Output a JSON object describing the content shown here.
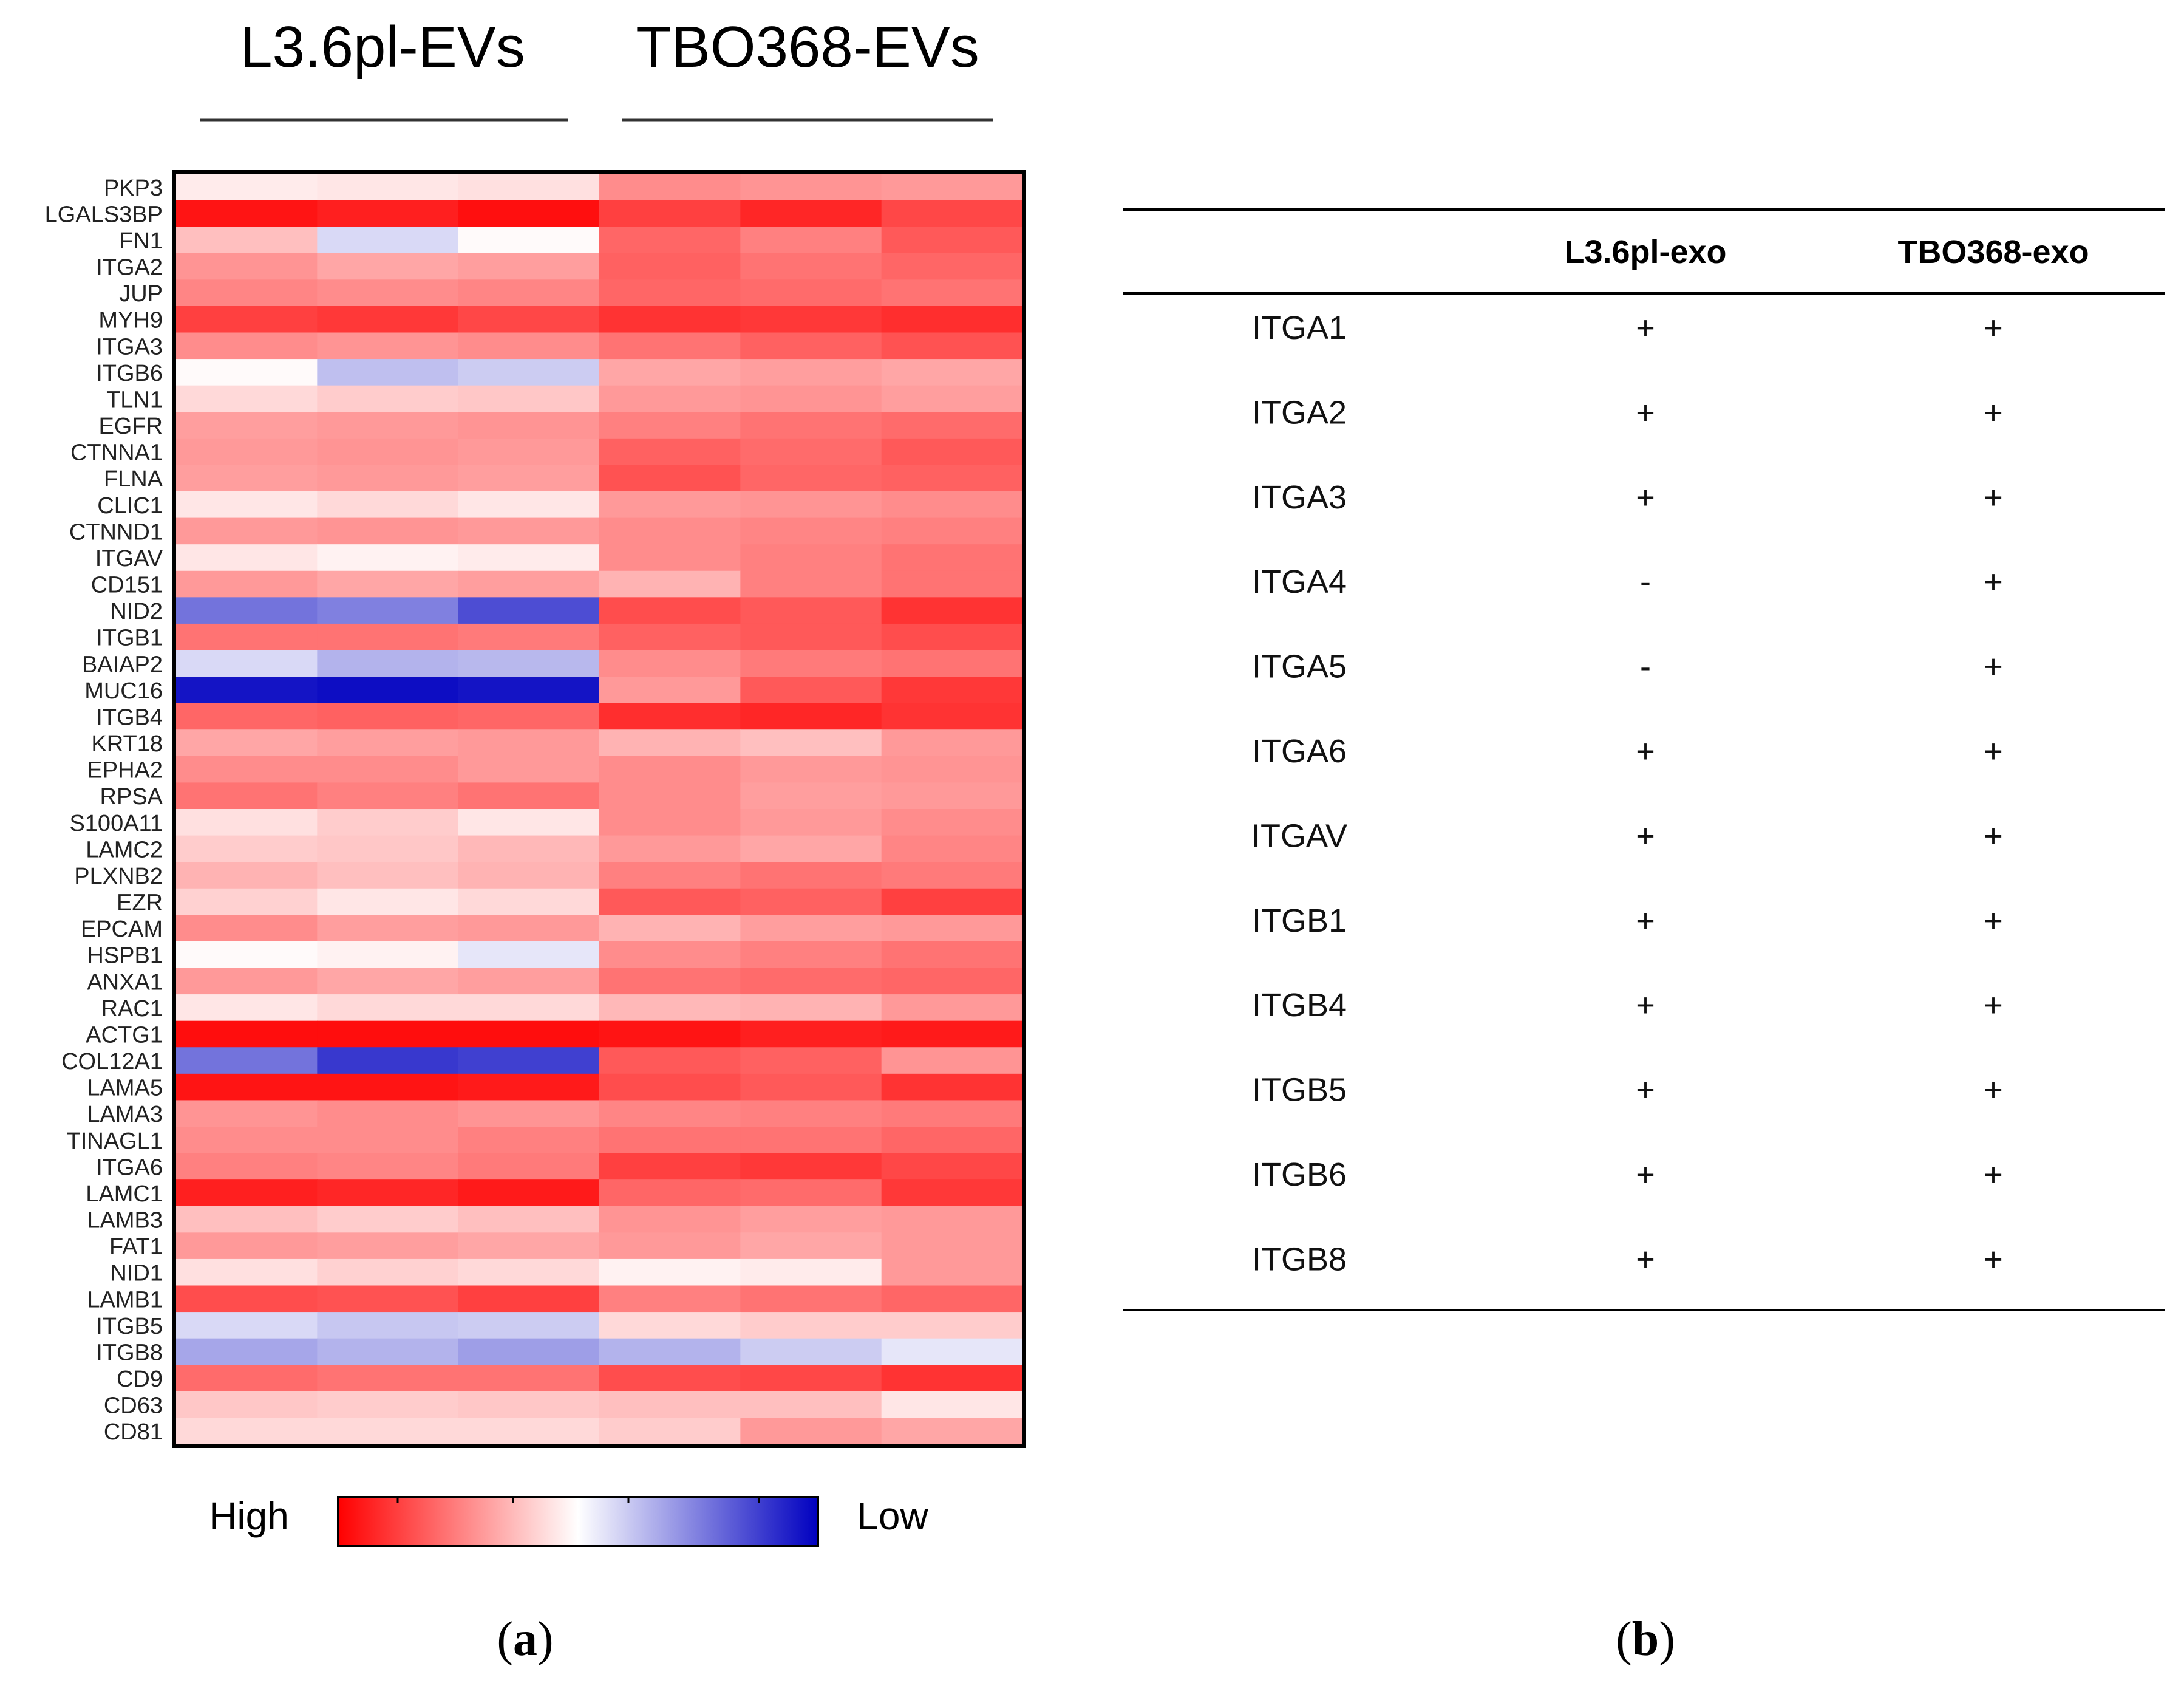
{
  "panel_a": {
    "group_labels": [
      "L3.6pl-EVs",
      "TBO368-EVs"
    ],
    "caption": "a"
  },
  "panel_b": {
    "caption": "b",
    "headers": [
      "",
      "L3.6pl-exo",
      "TBO368-exo"
    ],
    "rows": [
      [
        "ITGA1",
        "+",
        "+"
      ],
      [
        "ITGA2",
        "+",
        "+"
      ],
      [
        "ITGA3",
        "+",
        "+"
      ],
      [
        "ITGA4",
        "-",
        "+"
      ],
      [
        "ITGA5",
        "-",
        "+"
      ],
      [
        "ITGA6",
        "+",
        "+"
      ],
      [
        "ITGAV",
        "+",
        "+"
      ],
      [
        "ITGB1",
        "+",
        "+"
      ],
      [
        "ITGB4",
        "+",
        "+"
      ],
      [
        "ITGB5",
        "+",
        "+"
      ],
      [
        "ITGB6",
        "+",
        "+"
      ],
      [
        "ITGB8",
        "+",
        "+"
      ]
    ]
  },
  "colors": {
    "high": "#ff0000",
    "mid": "#ffffff",
    "low": "#0000c0",
    "line": "#000000"
  },
  "chart_data": {
    "type": "heatmap",
    "title": "",
    "xlabel": "",
    "ylabel": "",
    "legend_high": "High",
    "legend_low": "Low",
    "scale": "relative expression: +1 = High (red), 0 = neutral (white), -1 = Low (blue)",
    "columns": [
      "L3.6pl-EVs 1",
      "L3.6pl-EVs 2",
      "L3.6pl-EVs 3",
      "TBO368-EVs 1",
      "TBO368-EVs 2",
      "TBO368-EVs 3"
    ],
    "rows": [
      "PKP3",
      "LGALS3BP",
      "FN1",
      "ITGA2",
      "JUP",
      "MYH9",
      "ITGA3",
      "ITGB6",
      "TLN1",
      "EGFR",
      "CTNNA1",
      "FLNA",
      "CLIC1",
      "CTNND1",
      "ITGAV",
      "CD151",
      "NID2",
      "ITGB1",
      "BAIAP2",
      "MUC16",
      "ITGB4",
      "KRT18",
      "EPHA2",
      "RPSA",
      "S100A11",
      "LAMC2",
      "PLXNB2",
      "EZR",
      "EPCAM",
      "HSPB1",
      "ANXA1",
      "RAC1",
      "ACTG1",
      "COL12A1",
      "LAMA5",
      "LAMA3",
      "TINAGL1",
      "ITGA6",
      "LAMC1",
      "LAMB3",
      "FAT1",
      "NID1",
      "LAMB1",
      "ITGB5",
      "ITGB8",
      "CD9",
      "CD63",
      "CD81"
    ],
    "values": [
      [
        0.08,
        0.1,
        0.12,
        0.45,
        0.42,
        0.4
      ],
      [
        0.92,
        0.88,
        0.94,
        0.75,
        0.85,
        0.72
      ],
      [
        0.25,
        -0.15,
        0.02,
        0.6,
        0.5,
        0.65
      ],
      [
        0.42,
        0.35,
        0.38,
        0.62,
        0.55,
        0.6
      ],
      [
        0.48,
        0.45,
        0.48,
        0.6,
        0.58,
        0.55
      ],
      [
        0.75,
        0.78,
        0.72,
        0.8,
        0.78,
        0.82
      ],
      [
        0.45,
        0.42,
        0.45,
        0.55,
        0.62,
        0.68
      ],
      [
        0.02,
        -0.25,
        -0.2,
        0.35,
        0.38,
        0.35
      ],
      [
        0.15,
        0.2,
        0.22,
        0.4,
        0.42,
        0.38
      ],
      [
        0.38,
        0.4,
        0.42,
        0.5,
        0.55,
        0.58
      ],
      [
        0.4,
        0.42,
        0.4,
        0.62,
        0.58,
        0.65
      ],
      [
        0.38,
        0.4,
        0.38,
        0.68,
        0.6,
        0.62
      ],
      [
        0.1,
        0.15,
        0.1,
        0.4,
        0.42,
        0.45
      ],
      [
        0.4,
        0.42,
        0.4,
        0.45,
        0.48,
        0.5
      ],
      [
        0.1,
        0.05,
        0.08,
        0.45,
        0.5,
        0.55
      ],
      [
        0.4,
        0.35,
        0.38,
        0.3,
        0.5,
        0.55
      ],
      [
        -0.55,
        -0.5,
        -0.7,
        0.7,
        0.65,
        0.8
      ],
      [
        0.55,
        0.55,
        0.52,
        0.62,
        0.65,
        0.7
      ],
      [
        -0.15,
        -0.3,
        -0.28,
        0.45,
        0.52,
        0.55
      ],
      [
        -0.92,
        -0.95,
        -0.92,
        0.4,
        0.65,
        0.78
      ],
      [
        0.6,
        0.62,
        0.6,
        0.82,
        0.85,
        0.8
      ],
      [
        0.35,
        0.38,
        0.4,
        0.3,
        0.25,
        0.4
      ],
      [
        0.45,
        0.45,
        0.4,
        0.45,
        0.4,
        0.42
      ],
      [
        0.55,
        0.5,
        0.55,
        0.45,
        0.38,
        0.4
      ],
      [
        0.12,
        0.2,
        0.1,
        0.45,
        0.4,
        0.45
      ],
      [
        0.2,
        0.22,
        0.28,
        0.4,
        0.35,
        0.48
      ],
      [
        0.3,
        0.25,
        0.3,
        0.5,
        0.55,
        0.52
      ],
      [
        0.18,
        0.1,
        0.15,
        0.65,
        0.62,
        0.75
      ],
      [
        0.45,
        0.38,
        0.4,
        0.3,
        0.38,
        0.4
      ],
      [
        0.02,
        0.05,
        -0.1,
        0.45,
        0.5,
        0.55
      ],
      [
        0.4,
        0.35,
        0.38,
        0.55,
        0.58,
        0.6
      ],
      [
        0.1,
        0.15,
        0.15,
        0.28,
        0.3,
        0.4
      ],
      [
        0.95,
        0.95,
        0.95,
        0.92,
        0.88,
        0.9
      ],
      [
        -0.55,
        -0.78,
        -0.75,
        0.65,
        0.62,
        0.42
      ],
      [
        0.92,
        0.92,
        0.9,
        0.7,
        0.65,
        0.8
      ],
      [
        0.42,
        0.45,
        0.42,
        0.48,
        0.5,
        0.52
      ],
      [
        0.45,
        0.45,
        0.5,
        0.55,
        0.55,
        0.6
      ],
      [
        0.5,
        0.48,
        0.52,
        0.75,
        0.78,
        0.72
      ],
      [
        0.88,
        0.85,
        0.9,
        0.6,
        0.58,
        0.78
      ],
      [
        0.25,
        0.2,
        0.25,
        0.42,
        0.38,
        0.4
      ],
      [
        0.4,
        0.38,
        0.35,
        0.4,
        0.35,
        0.4
      ],
      [
        0.12,
        0.18,
        0.15,
        0.05,
        0.08,
        0.4
      ],
      [
        0.7,
        0.68,
        0.75,
        0.5,
        0.55,
        0.6
      ],
      [
        -0.15,
        -0.22,
        -0.2,
        0.15,
        0.2,
        0.2
      ],
      [
        -0.35,
        -0.3,
        -0.38,
        -0.3,
        -0.2,
        -0.1
      ],
      [
        0.58,
        0.55,
        0.55,
        0.7,
        0.72,
        0.8
      ],
      [
        0.22,
        0.2,
        0.22,
        0.25,
        0.25,
        0.1
      ],
      [
        0.15,
        0.15,
        0.15,
        0.2,
        0.4,
        0.35
      ]
    ]
  }
}
